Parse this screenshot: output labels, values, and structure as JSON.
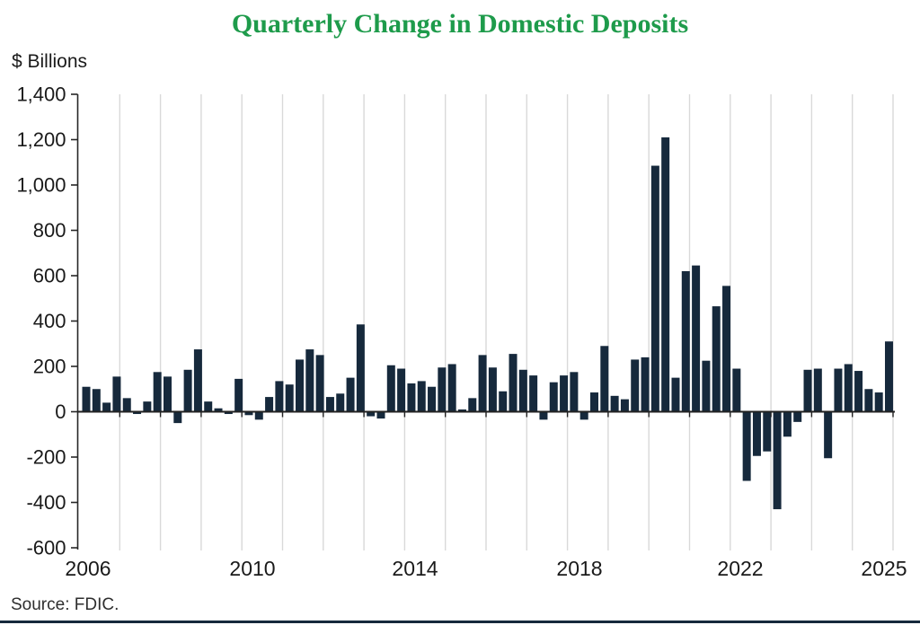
{
  "page": {
    "title": "Quarterly Change in Domestic Deposits",
    "y_axis_unit_label": "$ Billions",
    "source": "Source: FDIC."
  },
  "chart_data": {
    "type": "bar",
    "title": "Quarterly Change in Domestic Deposits",
    "ylabel": "$ Billions",
    "source": "Source: FDIC.",
    "ylim": [
      -600,
      1400
    ],
    "grid": "vertical-year-gridlines-only",
    "legend": "none",
    "bar_color": "#16293c",
    "title_color": "#1e9b4b",
    "gridline_color": "#d9d9d9",
    "axis_color": "#262626",
    "x": [
      "2006Q1",
      "2006Q2",
      "2006Q3",
      "2006Q4",
      "2007Q1",
      "2007Q2",
      "2007Q3",
      "2007Q4",
      "2008Q1",
      "2008Q2",
      "2008Q3",
      "2008Q4",
      "2009Q1",
      "2009Q2",
      "2009Q3",
      "2009Q4",
      "2010Q1",
      "2010Q2",
      "2010Q3",
      "2010Q4",
      "2011Q1",
      "2011Q2",
      "2011Q3",
      "2011Q4",
      "2012Q1",
      "2012Q2",
      "2012Q3",
      "2012Q4",
      "2013Q1",
      "2013Q2",
      "2013Q3",
      "2013Q4",
      "2014Q1",
      "2014Q2",
      "2014Q3",
      "2014Q4",
      "2015Q1",
      "2015Q2",
      "2015Q3",
      "2015Q4",
      "2016Q1",
      "2016Q2",
      "2016Q3",
      "2016Q4",
      "2017Q1",
      "2017Q2",
      "2017Q3",
      "2017Q4",
      "2018Q1",
      "2018Q2",
      "2018Q3",
      "2018Q4",
      "2019Q1",
      "2019Q2",
      "2019Q3",
      "2019Q4",
      "2020Q1",
      "2020Q2",
      "2020Q3",
      "2020Q4",
      "2021Q1",
      "2021Q2",
      "2021Q3",
      "2021Q4",
      "2022Q1",
      "2022Q2",
      "2022Q3",
      "2022Q4",
      "2023Q1",
      "2023Q2",
      "2023Q3",
      "2023Q4",
      "2024Q1",
      "2024Q2",
      "2024Q3",
      "2024Q4",
      "2025Q1",
      "2025Q2",
      "2025Q3",
      "2025Q4"
    ],
    "values": [
      110,
      100,
      40,
      155,
      60,
      -10,
      45,
      175,
      155,
      -50,
      185,
      275,
      45,
      15,
      -10,
      145,
      -15,
      -35,
      65,
      135,
      120,
      230,
      275,
      250,
      65,
      80,
      150,
      385,
      -20,
      -30,
      205,
      190,
      125,
      135,
      110,
      195,
      210,
      10,
      60,
      250,
      195,
      90,
      255,
      185,
      160,
      -35,
      130,
      160,
      175,
      -35,
      85,
      290,
      70,
      55,
      230,
      240,
      1085,
      1210,
      150,
      620,
      645,
      225,
      465,
      555,
      190,
      -305,
      -195,
      -175,
      -430,
      -110,
      -45,
      185,
      190,
      -205,
      190,
      210,
      180,
      100,
      85,
      310
    ],
    "y_ticks": [
      {
        "value": 1400,
        "label": "1,400"
      },
      {
        "value": 1200,
        "label": "1,200"
      },
      {
        "value": 1000,
        "label": "1,000"
      },
      {
        "value": 800,
        "label": "800"
      },
      {
        "value": 600,
        "label": "600"
      },
      {
        "value": 400,
        "label": "400"
      },
      {
        "value": 200,
        "label": "200"
      },
      {
        "value": 0,
        "label": "0"
      },
      {
        "value": -200,
        "label": "-200"
      },
      {
        "value": -400,
        "label": "-400"
      },
      {
        "value": -600,
        "label": "-600"
      }
    ],
    "x_tick_labels": [
      "2006",
      "2010",
      "2014",
      "2018",
      "2022",
      "2025"
    ]
  }
}
